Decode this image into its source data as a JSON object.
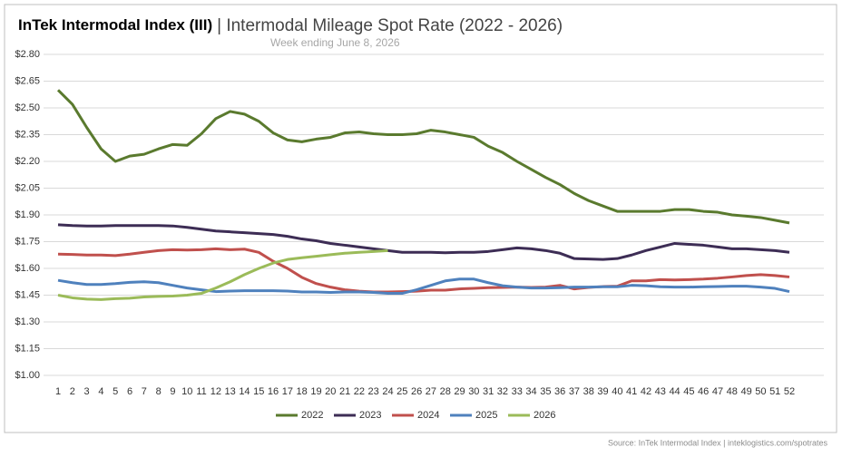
{
  "chart_data": {
    "type": "line",
    "title": "InTek Intermodal Index (III)",
    "title_suffix": "| Intermodal Mileage Spot Rate (2022 - 2026)",
    "subtitle": "Week ending June 8, 2026",
    "source": "Source: InTek Intermodal Index | inteklogistics.com/spotrates",
    "categories": [
      "1",
      "2",
      "3",
      "4",
      "5",
      "6",
      "7",
      "8",
      "9",
      "10",
      "11",
      "12",
      "13",
      "14",
      "15",
      "16",
      "17",
      "18",
      "19",
      "20",
      "21",
      "22",
      "23",
      "24",
      "25",
      "26",
      "27",
      "28",
      "29",
      "30",
      "31",
      "32",
      "33",
      "34",
      "35",
      "36",
      "37",
      "38",
      "39",
      "40",
      "41",
      "42",
      "43",
      "44",
      "45",
      "46",
      "47",
      "48",
      "49",
      "50",
      "51",
      "52"
    ],
    "ylim": [
      1.0,
      2.8
    ],
    "yticks": [
      {
        "value": 1.0,
        "label": "$1.00"
      },
      {
        "value": 1.15,
        "label": "$1.15"
      },
      {
        "value": 1.3,
        "label": "$1.30"
      },
      {
        "value": 1.45,
        "label": "$1.45"
      },
      {
        "value": 1.6,
        "label": "$1.60"
      },
      {
        "value": 1.75,
        "label": "$1.75"
      },
      {
        "value": 1.9,
        "label": "$1.90"
      },
      {
        "value": 2.05,
        "label": "$2.05"
      },
      {
        "value": 2.2,
        "label": "$2.20"
      },
      {
        "value": 2.35,
        "label": "$2.35"
      },
      {
        "value": 2.5,
        "label": "$2.50"
      },
      {
        "value": 2.65,
        "label": "$2.65"
      },
      {
        "value": 2.8,
        "label": "$2.80"
      }
    ],
    "grid": true,
    "legend": "bottom",
    "series": [
      {
        "name": "2022",
        "color": "#5a7a2e",
        "values": [
          2.6,
          2.52,
          2.39,
          2.27,
          2.2,
          2.23,
          2.24,
          2.27,
          2.295,
          2.29,
          2.355,
          2.44,
          2.48,
          2.465,
          2.425,
          2.36,
          2.32,
          2.31,
          2.325,
          2.335,
          2.36,
          2.365,
          2.355,
          2.35,
          2.35,
          2.355,
          2.375,
          2.365,
          2.35,
          2.335,
          2.285,
          2.25,
          2.2,
          2.155,
          2.11,
          2.07,
          2.02,
          1.98,
          1.95,
          1.92,
          1.92,
          1.92,
          1.92,
          1.93,
          1.93,
          1.92,
          1.915,
          1.9,
          1.893,
          1.885,
          1.87,
          1.855
        ]
      },
      {
        "name": "2023",
        "color": "#3d2d55",
        "values": [
          1.845,
          1.84,
          1.838,
          1.838,
          1.84,
          1.84,
          1.84,
          1.84,
          1.838,
          1.83,
          1.82,
          1.81,
          1.805,
          1.8,
          1.795,
          1.79,
          1.78,
          1.765,
          1.755,
          1.74,
          1.73,
          1.72,
          1.71,
          1.7,
          1.69,
          1.69,
          1.69,
          1.688,
          1.69,
          1.69,
          1.695,
          1.705,
          1.715,
          1.71,
          1.7,
          1.685,
          1.655,
          1.653,
          1.65,
          1.655,
          1.675,
          1.7,
          1.72,
          1.74,
          1.735,
          1.73,
          1.72,
          1.71,
          1.71,
          1.705,
          1.7,
          1.69
        ]
      },
      {
        "name": "2024",
        "color": "#c0504d",
        "values": [
          1.68,
          1.678,
          1.675,
          1.675,
          1.672,
          1.68,
          1.69,
          1.7,
          1.705,
          1.703,
          1.705,
          1.71,
          1.705,
          1.708,
          1.69,
          1.64,
          1.6,
          1.55,
          1.515,
          1.495,
          1.48,
          1.472,
          1.468,
          1.468,
          1.47,
          1.472,
          1.478,
          1.478,
          1.485,
          1.488,
          1.492,
          1.493,
          1.495,
          1.493,
          1.495,
          1.505,
          1.485,
          1.493,
          1.498,
          1.5,
          1.53,
          1.53,
          1.537,
          1.535,
          1.537,
          1.54,
          1.545,
          1.552,
          1.56,
          1.565,
          1.56,
          1.552
        ]
      },
      {
        "name": "2025",
        "color": "#4f81bd",
        "values": [
          1.533,
          1.52,
          1.51,
          1.51,
          1.515,
          1.522,
          1.525,
          1.52,
          1.505,
          1.49,
          1.48,
          1.47,
          1.473,
          1.475,
          1.475,
          1.475,
          1.473,
          1.468,
          1.468,
          1.465,
          1.468,
          1.468,
          1.465,
          1.46,
          1.46,
          1.48,
          1.505,
          1.53,
          1.54,
          1.54,
          1.52,
          1.503,
          1.495,
          1.49,
          1.49,
          1.492,
          1.495,
          1.495,
          1.497,
          1.497,
          1.505,
          1.503,
          1.497,
          1.495,
          1.495,
          1.497,
          1.498,
          1.5,
          1.5,
          1.495,
          1.488,
          1.47
        ]
      },
      {
        "name": "2026",
        "color": "#9bbb59",
        "values": [
          1.45,
          1.435,
          1.428,
          1.425,
          1.43,
          1.433,
          1.44,
          1.443,
          1.445,
          1.45,
          1.46,
          1.49,
          1.525,
          1.565,
          1.6,
          1.63,
          1.65,
          1.66,
          1.668,
          1.677,
          1.685,
          1.69,
          1.695,
          1.7,
          null,
          null,
          null,
          null,
          null,
          null,
          null,
          null,
          null,
          null,
          null,
          null,
          null,
          null,
          null,
          null,
          null,
          null,
          null,
          null,
          null,
          null,
          null,
          null,
          null,
          null,
          null,
          null
        ]
      }
    ]
  }
}
